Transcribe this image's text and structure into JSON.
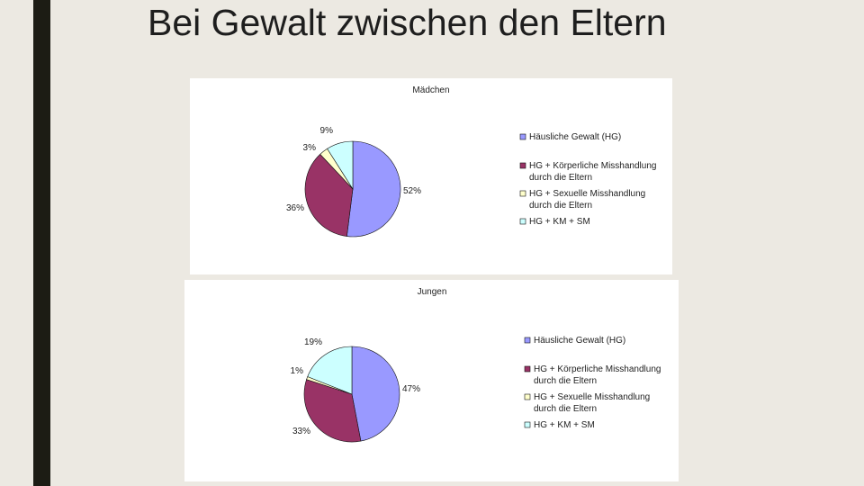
{
  "slide": {
    "title": "Bei Gewalt zwischen den Eltern"
  },
  "colors": {
    "accent_bar": "#1c1c14",
    "background": "#ece9e2"
  },
  "chart_data": [
    {
      "type": "pie",
      "title": "Mädchen",
      "series": [
        {
          "name": "Häusliche Gewalt (HG)",
          "lines": [
            "Häusliche Gewalt (HG)"
          ],
          "value": 52,
          "label": "52%",
          "color": "#9999ff"
        },
        {
          "name": "HG + Körperliche Misshandlung durch die Eltern",
          "lines": [
            "HG + Körperliche Misshandlung",
            "durch die Eltern"
          ],
          "value": 36,
          "label": "36%",
          "color": "#993366"
        },
        {
          "name": "HG + Sexuelle Misshandlung durch die Eltern",
          "lines": [
            "HG + Sexuelle Misshandlung",
            "durch die Eltern"
          ],
          "value": 3,
          "label": "3%",
          "color": "#ffffcc"
        },
        {
          "name": "HG + KM + SM",
          "lines": [
            "HG + KM + SM"
          ],
          "value": 9,
          "label": "9%",
          "color": "#ccffff"
        }
      ],
      "legend": "right"
    },
    {
      "type": "pie",
      "title": "Jungen",
      "series": [
        {
          "name": "Häusliche Gewalt (HG)",
          "lines": [
            "Häusliche Gewalt (HG)"
          ],
          "value": 47,
          "label": "47%",
          "color": "#9999ff"
        },
        {
          "name": "HG + Körperliche Misshandlung durch die Eltern",
          "lines": [
            "HG + Körperliche Misshandlung",
            "durch die Eltern"
          ],
          "value": 33,
          "label": "33%",
          "color": "#993366"
        },
        {
          "name": "HG + Sexuelle Misshandlung durch die Eltern",
          "lines": [
            "HG + Sexuelle Misshandlung",
            "durch die Eltern"
          ],
          "value": 1,
          "label": "1%",
          "color": "#ffffcc"
        },
        {
          "name": "HG + KM + SM",
          "lines": [
            "HG + KM + SM"
          ],
          "value": 19,
          "label": "19%",
          "color": "#ccffff"
        }
      ],
      "legend": "right"
    }
  ]
}
